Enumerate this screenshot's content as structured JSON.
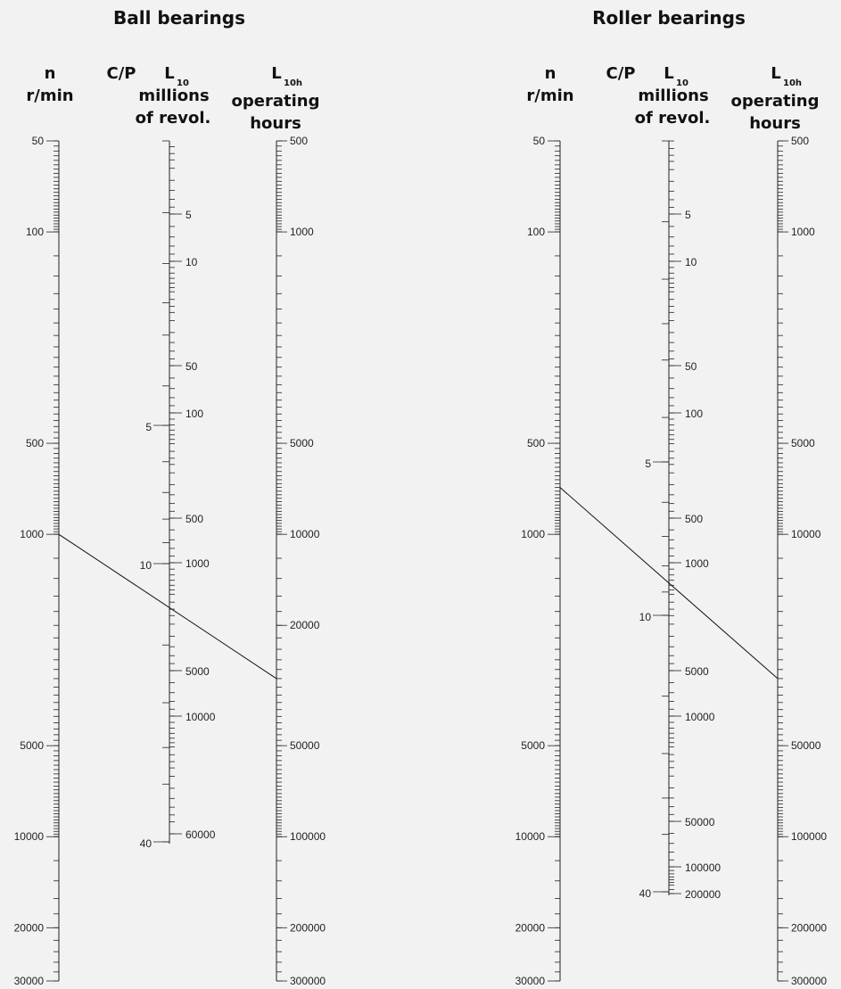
{
  "panels": [
    {
      "id": "ball",
      "title": "Ball bearings",
      "headers": {
        "n": [
          "n",
          "r/min"
        ],
        "cp": "C/P",
        "l10": {
          "main": "L",
          "sub": "10",
          "lines": [
            "millions",
            "of revol."
          ]
        },
        "l10h": {
          "main": "L",
          "sub": "10h",
          "lines": [
            "operating",
            "hours"
          ]
        }
      },
      "n_scale": [
        "50",
        "100",
        "500",
        "1000",
        "5000",
        "10000",
        "20000",
        "30000"
      ],
      "cp_scale": [
        "5",
        "10",
        "40"
      ],
      "l10_scale": [
        "5",
        "10",
        "50",
        "100",
        "500",
        "1000",
        "5000",
        "10000",
        "60000"
      ],
      "l10h_scale": [
        "500",
        "1000",
        "5000",
        "10000",
        "20000",
        "50000",
        "100000",
        "200000",
        "300000"
      ],
      "example_line": {
        "n": 1000,
        "l10h": 30000
      }
    },
    {
      "id": "roller",
      "title": "Roller bearings",
      "headers": {
        "n": [
          "n",
          "r/min"
        ],
        "cp": "C/P",
        "l10": {
          "main": "L",
          "sub": "10",
          "lines": [
            "millions",
            "of revol."
          ]
        },
        "l10h": {
          "main": "L",
          "sub": "10h",
          "lines": [
            "operating",
            "hours"
          ]
        }
      },
      "n_scale": [
        "50",
        "100",
        "500",
        "1000",
        "5000",
        "10000",
        "20000",
        "30000"
      ],
      "cp_scale": [
        "5",
        "10",
        "40"
      ],
      "l10_scale": [
        "5",
        "10",
        "50",
        "100",
        "500",
        "1000",
        "5000",
        "10000",
        "50000",
        "100000",
        "200000"
      ],
      "l10h_scale": [
        "500",
        "1000",
        "5000",
        "10000",
        "50000",
        "100000",
        "200000",
        "300000"
      ],
      "example_line": {
        "n": 700,
        "l10h": 30000
      }
    }
  ]
}
